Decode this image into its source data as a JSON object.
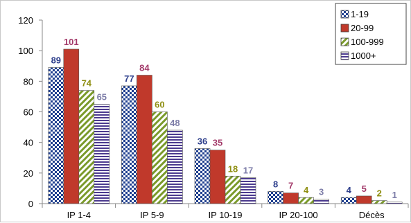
{
  "chart_data": {
    "type": "bar",
    "categories": [
      "IP 1-4",
      "IP 5-9",
      "IP 10-19",
      "IP 20-100",
      "Décès"
    ],
    "series": [
      {
        "name": "1-19",
        "values": [
          89,
          77,
          36,
          8,
          4
        ],
        "pattern": "checker",
        "color": "#1f3f8f",
        "label_color": "#2e3f8c"
      },
      {
        "name": "20-99",
        "values": [
          101,
          84,
          35,
          7,
          5
        ],
        "pattern": "solid",
        "color": "#c0392b",
        "label_color": "#a33a6a"
      },
      {
        "name": "100-999",
        "values": [
          74,
          60,
          18,
          4,
          2
        ],
        "pattern": "diagonal",
        "color": "#7a9a2a",
        "label_color": "#8f8f12"
      },
      {
        "name": "1000+",
        "values": [
          65,
          48,
          17,
          3,
          1
        ],
        "pattern": "horizontal",
        "color": "#4b3a8f",
        "label_color": "#7d7da8"
      }
    ],
    "yticks": [
      0,
      20,
      40,
      60,
      80,
      100,
      120
    ],
    "ylim": [
      0,
      120
    ],
    "grid": false,
    "legend": "top-right",
    "title": "",
    "xlabel": "",
    "ylabel": ""
  }
}
